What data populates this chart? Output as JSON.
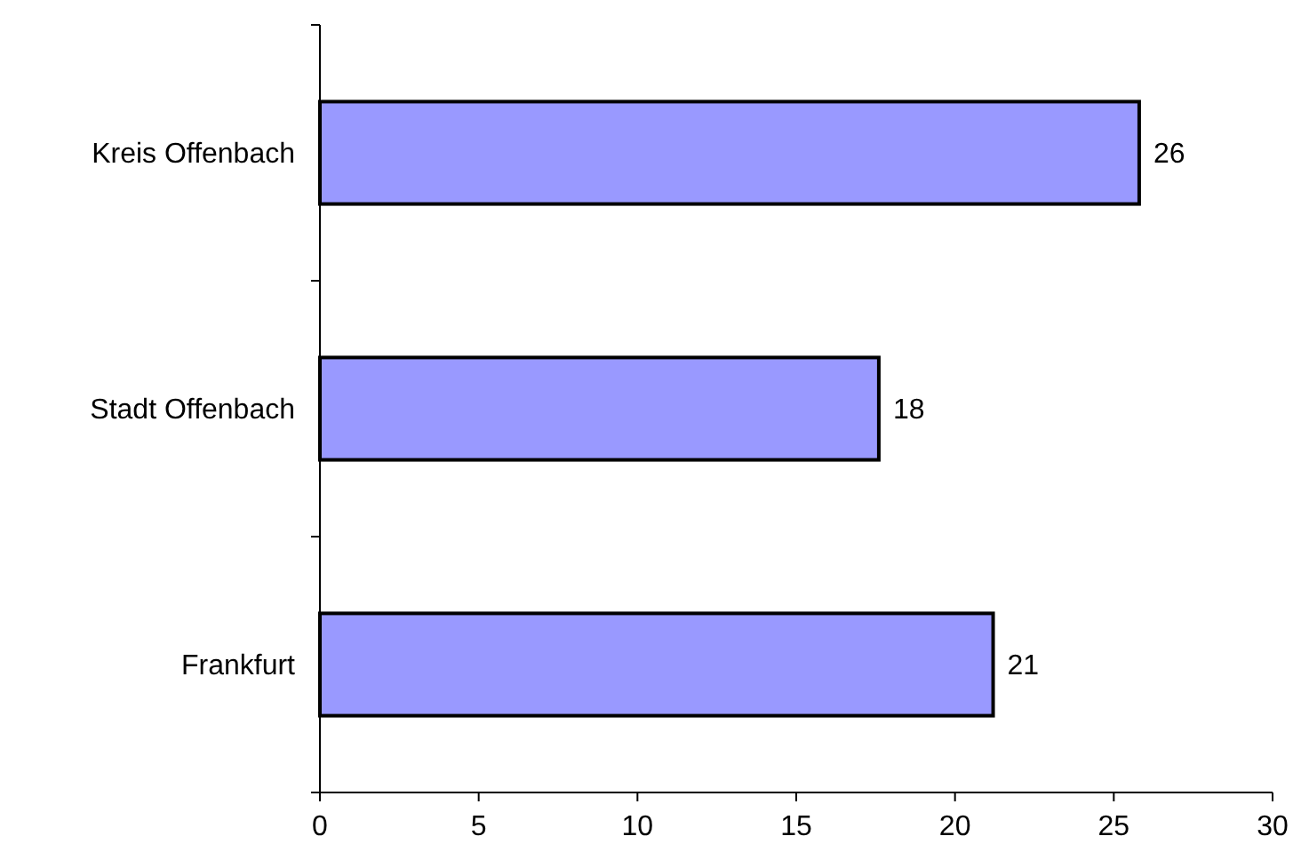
{
  "chart_data": {
    "type": "bar",
    "orientation": "horizontal",
    "categories": [
      "Kreis Offenbach",
      "Stadt Offenbach",
      "Frankfurt"
    ],
    "values": [
      25.8,
      17.6,
      21.2
    ],
    "value_labels": [
      "26",
      "18",
      "21"
    ],
    "color": "#9999ff",
    "xlim": [
      0,
      30
    ],
    "xticks": [
      0,
      5,
      10,
      15,
      20,
      25,
      30
    ]
  }
}
